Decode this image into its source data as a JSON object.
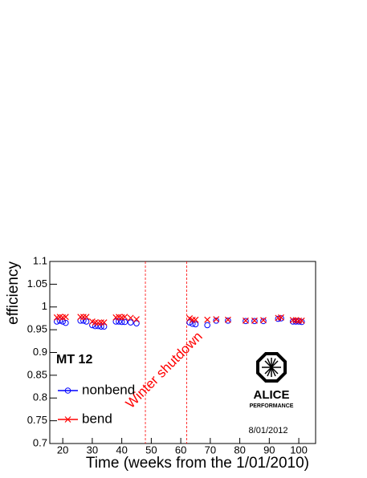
{
  "chart_data": {
    "type": "scatter",
    "title": "MT 12",
    "x_label": "Time (weeks from the 1/01/2010)",
    "y_label": "efficiency",
    "x": [
      18,
      19,
      20,
      21,
      26,
      27,
      28,
      30,
      31,
      32,
      33,
      34,
      38,
      39,
      40,
      41,
      43,
      45,
      63,
      64,
      65,
      69,
      72,
      76,
      82,
      85,
      88,
      93,
      94,
      98,
      99,
      100,
      101
    ],
    "series": [
      {
        "name": "nonbend",
        "color": "#0000ff",
        "marker": "circle",
        "values": [
          0.968,
          0.97,
          0.968,
          0.965,
          0.97,
          0.97,
          0.968,
          0.96,
          0.958,
          0.958,
          0.957,
          0.957,
          0.968,
          0.968,
          0.967,
          0.967,
          0.966,
          0.964,
          0.966,
          0.963,
          0.962,
          0.96,
          0.97,
          0.97,
          0.969,
          0.969,
          0.969,
          0.974,
          0.975,
          0.968,
          0.968,
          0.968,
          0.967
        ]
      },
      {
        "name": "bend",
        "color": "#ff0000",
        "marker": "x",
        "values": [
          0.977,
          0.978,
          0.977,
          0.978,
          0.978,
          0.978,
          0.978,
          0.968,
          0.966,
          0.965,
          0.966,
          0.966,
          0.977,
          0.978,
          0.977,
          0.978,
          0.976,
          0.973,
          0.975,
          0.972,
          0.972,
          0.972,
          0.973,
          0.972,
          0.97,
          0.97,
          0.971,
          0.976,
          0.977,
          0.971,
          0.971,
          0.97,
          0.97
        ]
      }
    ],
    "xlim": [
      15.6,
      105.7
    ],
    "ylim": [
      0.7,
      1.1
    ],
    "xticks": [
      20,
      30,
      40,
      50,
      60,
      70,
      80,
      90,
      100
    ],
    "yticks": [
      0.7,
      0.75,
      0.8,
      0.85,
      0.9,
      0.95,
      1,
      1.05,
      1.1
    ],
    "shutdown_lines": [
      48,
      62
    ],
    "annotation": "Winter shutdown",
    "date": "8/01/2012",
    "logo": {
      "name": "ALICE",
      "subtitle": "PERFORMANCE"
    }
  }
}
